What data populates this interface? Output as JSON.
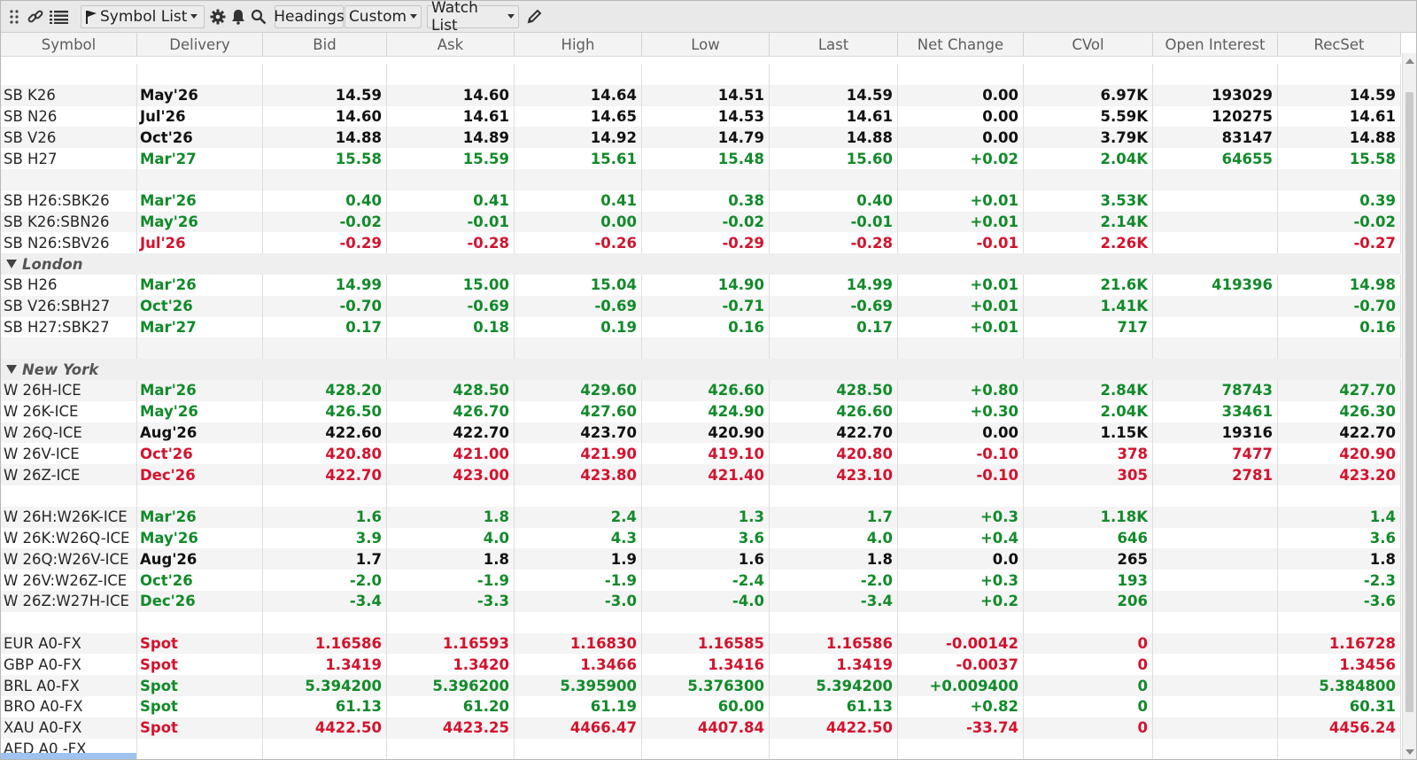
{
  "toolbar": {
    "symbol_list_label": "Symbol List",
    "headings_label": "Headings",
    "custom_label": "Custom",
    "watchlist_label": "Watch List"
  },
  "columns": [
    "Symbol",
    "Delivery",
    "Bid",
    "Ask",
    "High",
    "Low",
    "Last",
    "Net Change",
    "CVol",
    "Open Interest",
    "RecSet"
  ],
  "colors": {
    "positive": "#128a2a",
    "negative": "#d3132e",
    "neutral": "#111111"
  },
  "rows": [
    {
      "type": "blank"
    },
    {
      "type": "data",
      "color": "blk",
      "cells": [
        "SB K26",
        "May'26",
        "14.59",
        "14.60",
        "14.64",
        "14.51",
        "14.59",
        "0.00",
        "6.97K",
        "193029",
        "14.59"
      ]
    },
    {
      "type": "data",
      "color": "blk",
      "cells": [
        "SB N26",
        "Jul'26",
        "14.60",
        "14.61",
        "14.65",
        "14.53",
        "14.61",
        "0.00",
        "5.59K",
        "120275",
        "14.61"
      ]
    },
    {
      "type": "data",
      "color": "blk",
      "cells": [
        "SB V26",
        "Oct'26",
        "14.88",
        "14.89",
        "14.92",
        "14.79",
        "14.88",
        "0.00",
        "3.79K",
        "83147",
        "14.88"
      ]
    },
    {
      "type": "data",
      "color": "grn",
      "cells": [
        "SB H27",
        "Mar'27",
        "15.58",
        "15.59",
        "15.61",
        "15.48",
        "15.60",
        "+0.02",
        "2.04K",
        "64655",
        "15.58"
      ]
    },
    {
      "type": "blank"
    },
    {
      "type": "data",
      "color": "grn",
      "cells": [
        "SB H26:SBK26",
        "Mar'26",
        "0.40",
        "0.41",
        "0.41",
        "0.38",
        "0.40",
        "+0.01",
        "3.53K",
        "",
        "0.39"
      ]
    },
    {
      "type": "data",
      "color": "grn",
      "cells": [
        "SB K26:SBN26",
        "May'26",
        "-0.02",
        "-0.01",
        "0.00",
        "-0.02",
        "-0.01",
        "+0.01",
        "2.14K",
        "",
        "-0.02"
      ]
    },
    {
      "type": "data",
      "color": "red",
      "cells": [
        "SB N26:SBV26",
        "Jul'26",
        "-0.29",
        "-0.28",
        "-0.26",
        "-0.29",
        "-0.28",
        "-0.01",
        "2.26K",
        "",
        "-0.27"
      ]
    },
    {
      "type": "group",
      "label": "London"
    },
    {
      "type": "data",
      "color": "grn",
      "cells": [
        "SB H26",
        "Mar'26",
        "14.99",
        "15.00",
        "15.04",
        "14.90",
        "14.99",
        "+0.01",
        "21.6K",
        "419396",
        "14.98"
      ]
    },
    {
      "type": "data",
      "color": "grn",
      "cells": [
        "SB V26:SBH27",
        "Oct'26",
        "-0.70",
        "-0.69",
        "-0.69",
        "-0.71",
        "-0.69",
        "+0.01",
        "1.41K",
        "",
        "-0.70"
      ]
    },
    {
      "type": "data",
      "color": "grn",
      "cells": [
        "SB H27:SBK27",
        "Mar'27",
        "0.17",
        "0.18",
        "0.19",
        "0.16",
        "0.17",
        "+0.01",
        "717",
        "",
        "0.16"
      ]
    },
    {
      "type": "blank"
    },
    {
      "type": "group",
      "label": "New York"
    },
    {
      "type": "data",
      "color": "grn",
      "cells": [
        "W 26H-ICE",
        "Mar'26",
        "428.20",
        "428.50",
        "429.60",
        "426.60",
        "428.50",
        "+0.80",
        "2.84K",
        "78743",
        "427.70"
      ]
    },
    {
      "type": "data",
      "color": "grn",
      "cells": [
        "W 26K-ICE",
        "May'26",
        "426.50",
        "426.70",
        "427.60",
        "424.90",
        "426.60",
        "+0.30",
        "2.04K",
        "33461",
        "426.30"
      ]
    },
    {
      "type": "data",
      "color": "blk",
      "cells": [
        "W 26Q-ICE",
        "Aug'26",
        "422.60",
        "422.70",
        "423.70",
        "420.90",
        "422.70",
        "0.00",
        "1.15K",
        "19316",
        "422.70"
      ]
    },
    {
      "type": "data",
      "color": "red",
      "cells": [
        "W 26V-ICE",
        "Oct'26",
        "420.80",
        "421.00",
        "421.90",
        "419.10",
        "420.80",
        "-0.10",
        "378",
        "7477",
        "420.90"
      ]
    },
    {
      "type": "data",
      "color": "red",
      "cells": [
        "W 26Z-ICE",
        "Dec'26",
        "422.70",
        "423.00",
        "423.80",
        "421.40",
        "423.10",
        "-0.10",
        "305",
        "2781",
        "423.20"
      ]
    },
    {
      "type": "blank"
    },
    {
      "type": "data",
      "color": "grn",
      "cells": [
        "W 26H:W26K-ICE",
        "Mar'26",
        "1.6",
        "1.8",
        "2.4",
        "1.3",
        "1.7",
        "+0.3",
        "1.18K",
        "",
        "1.4"
      ]
    },
    {
      "type": "data",
      "color": "grn",
      "cells": [
        "W 26K:W26Q-ICE",
        "May'26",
        "3.9",
        "4.0",
        "4.3",
        "3.6",
        "4.0",
        "+0.4",
        "646",
        "",
        "3.6"
      ]
    },
    {
      "type": "data",
      "color": "blk",
      "cells": [
        "W 26Q:W26V-ICE",
        "Aug'26",
        "1.7",
        "1.8",
        "1.9",
        "1.6",
        "1.8",
        "0.0",
        "265",
        "",
        "1.8"
      ]
    },
    {
      "type": "data",
      "color": "grn",
      "cells": [
        "W 26V:W26Z-ICE",
        "Oct'26",
        "-2.0",
        "-1.9",
        "-1.9",
        "-2.4",
        "-2.0",
        "+0.3",
        "193",
        "",
        "-2.3"
      ]
    },
    {
      "type": "data",
      "color": "grn",
      "cells": [
        "W 26Z:W27H-ICE",
        "Dec'26",
        "-3.4",
        "-3.3",
        "-3.0",
        "-4.0",
        "-3.4",
        "+0.2",
        "206",
        "",
        "-3.6"
      ]
    },
    {
      "type": "blank"
    },
    {
      "type": "data",
      "color": "red",
      "cells": [
        "EUR A0-FX",
        "Spot",
        "1.16586",
        "1.16593",
        "1.16830",
        "1.16585",
        "1.16586",
        "-0.00142",
        "0",
        "",
        "1.16728"
      ]
    },
    {
      "type": "data",
      "color": "red",
      "cells": [
        "GBP A0-FX",
        "Spot",
        "1.3419",
        "1.3420",
        "1.3466",
        "1.3416",
        "1.3419",
        "-0.0037",
        "0",
        "",
        "1.3456"
      ]
    },
    {
      "type": "data",
      "color": "grn",
      "cells": [
        "BRL A0-FX",
        "Spot",
        "5.394200",
        "5.396200",
        "5.395900",
        "5.376300",
        "5.394200",
        "+0.009400",
        "0",
        "",
        "5.384800"
      ]
    },
    {
      "type": "data",
      "color": "grn",
      "cells": [
        "BRO A0-FX",
        "Spot",
        "61.13",
        "61.20",
        "61.19",
        "60.00",
        "61.13",
        "+0.82",
        "0",
        "",
        "60.31"
      ]
    },
    {
      "type": "data",
      "color": "red",
      "cells": [
        "XAU A0-FX",
        "Spot",
        "4422.50",
        "4423.25",
        "4466.47",
        "4407.84",
        "4422.50",
        "-33.74",
        "0",
        "",
        "4456.24"
      ]
    },
    {
      "type": "data",
      "color": "blk",
      "cells": [
        "AED A0 -FX",
        "",
        "",
        "",
        "",
        "",
        "",
        "",
        "",
        "",
        ""
      ]
    }
  ]
}
